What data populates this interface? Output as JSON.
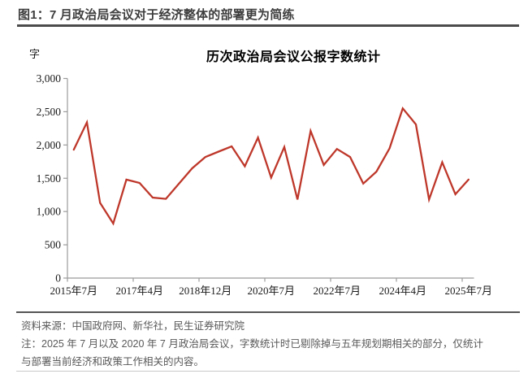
{
  "header": {
    "title": "图1：7 月政治局会议对于经济整体的部署更为简练"
  },
  "chart_data": {
    "type": "line",
    "title": "历次政治局会议公报字数统计",
    "ylabel": "字",
    "xlabel": "",
    "ylim": [
      0,
      3000
    ],
    "yticks": [
      0,
      500,
      1000,
      1500,
      2000,
      2500,
      3000
    ],
    "x_tick_labels": [
      "2015年7月",
      "2017年4月",
      "2018年12月",
      "2020年7月",
      "2022年7月",
      "2024年4月",
      "2025年7月"
    ],
    "x_tick_label_indices": [
      0,
      5,
      10,
      15,
      20,
      25,
      30
    ],
    "values": [
      1930,
      2340,
      1130,
      820,
      1480,
      1430,
      1210,
      1190,
      1420,
      1650,
      1820,
      1900,
      1980,
      1680,
      2110,
      1510,
      1970,
      1180,
      2210,
      1700,
      1940,
      1820,
      1420,
      1600,
      1950,
      2550,
      2310,
      1180,
      1740,
      1260,
      1480
    ],
    "series_name": "历次政治局会议公报字数",
    "legend_position": "none",
    "grid": false,
    "line_color": "#be372a",
    "axis_color": "#9b9b9b",
    "tick_label_color": "#1a1a1a"
  },
  "footer": {
    "source": "资料来源：中国政府网、新华社，民生证券研究院",
    "note_line1": "注：2025 年 7 月以及 2020 年 7 月政治局会议，字数统计时已剔除掉与五年规划期相关的部分，仅统计",
    "note_line2": "与部署当前经济和政策工作相关的内容。"
  }
}
